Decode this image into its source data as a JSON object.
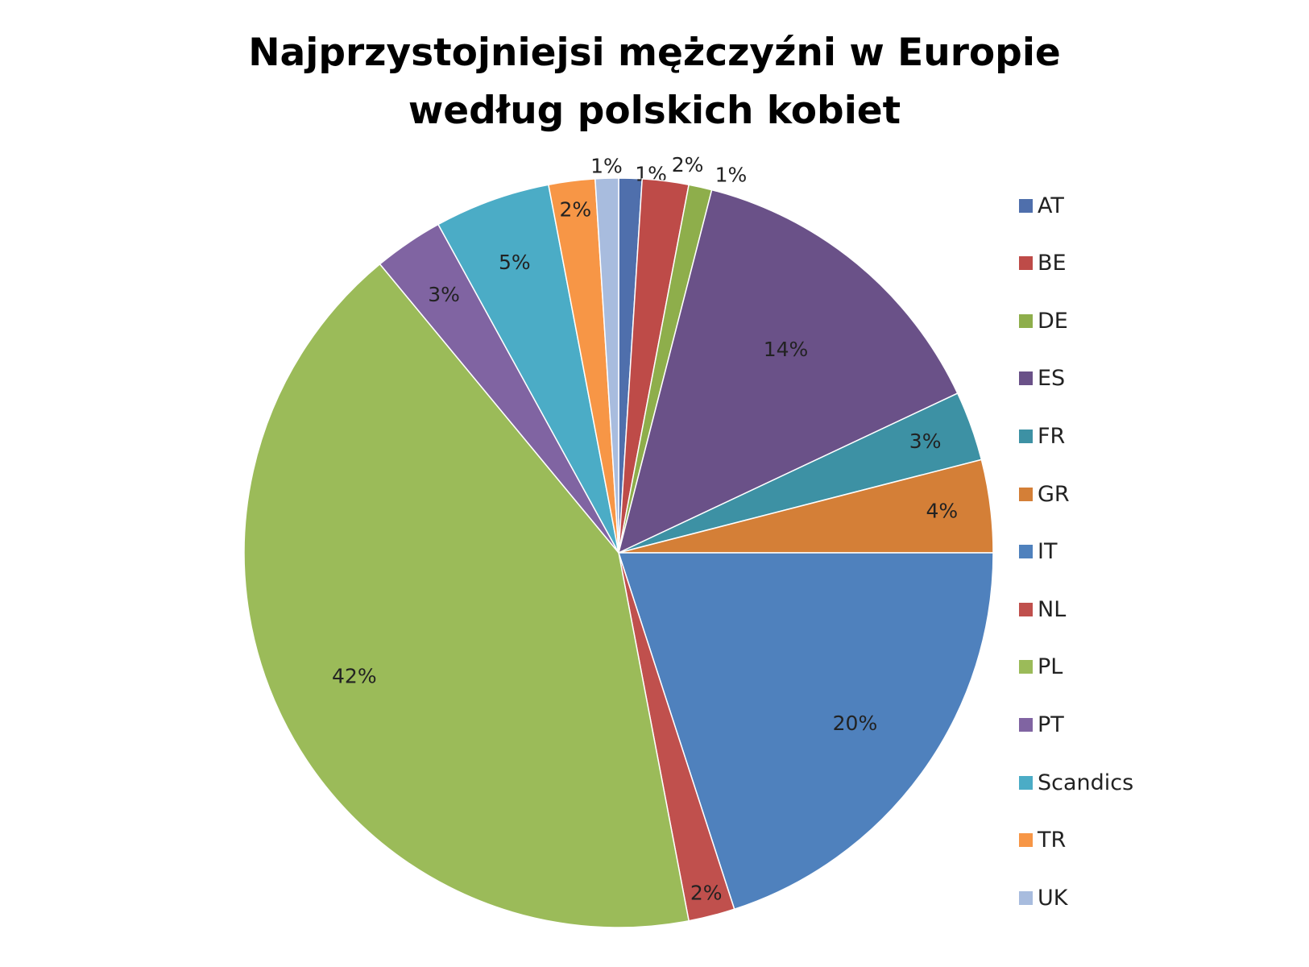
{
  "chart_data": {
    "type": "pie",
    "title": "Najprzystojniejsi mężczyźni w Europie",
    "subtitle": "według polskich kobiet",
    "legend_position": "right",
    "slices": [
      {
        "label": "AT",
        "value": 1,
        "display": "1%",
        "color": "#4F6FAC"
      },
      {
        "label": "BE",
        "value": 2,
        "display": "2%",
        "color": "#BE4B48"
      },
      {
        "label": "DE",
        "value": 1,
        "display": "1%",
        "color": "#8EAE4B"
      },
      {
        "label": "ES",
        "value": 14,
        "display": "14%",
        "color": "#6A5188"
      },
      {
        "label": "FR",
        "value": 3,
        "display": "3%",
        "color": "#3D91A4"
      },
      {
        "label": "GR",
        "value": 4,
        "display": "4%",
        "color": "#D47F37"
      },
      {
        "label": "IT",
        "value": 20,
        "display": "20%",
        "color": "#4F81BD"
      },
      {
        "label": "NL",
        "value": 2,
        "display": "2%",
        "color": "#C0504D"
      },
      {
        "label": "PL",
        "value": 42,
        "display": "42%",
        "color": "#9BBB59"
      },
      {
        "label": "PT",
        "value": 3,
        "display": "3%",
        "color": "#8064A2"
      },
      {
        "label": "Scandics",
        "value": 5,
        "display": "5%",
        "color": "#4BACC6"
      },
      {
        "label": "TR",
        "value": 2,
        "display": "2%",
        "color": "#F79646"
      },
      {
        "label": "UK",
        "value": 1,
        "display": "1%",
        "color": "#A8BCDE"
      }
    ]
  }
}
